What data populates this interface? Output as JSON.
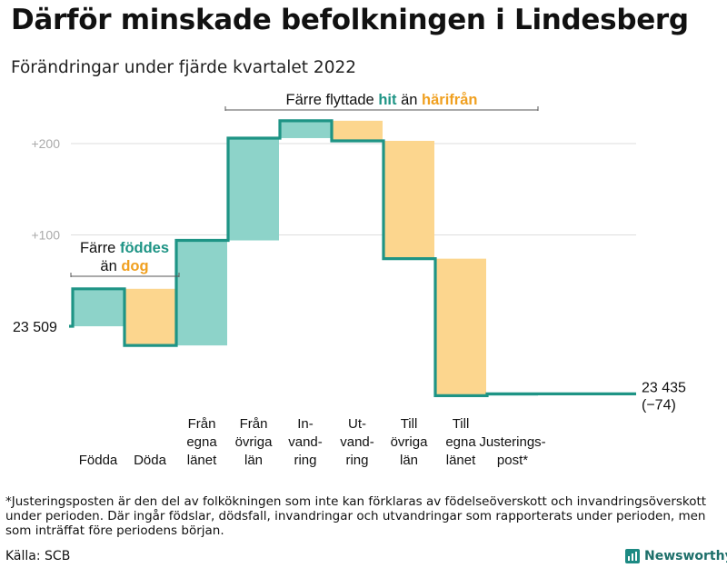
{
  "chart_data": {
    "type": "waterfall",
    "title": "Därför minskade befolkningen i Lindesberg",
    "subtitle": "Förändringar under fjärde kvartalet 2022",
    "start_label": "23 509",
    "start_value": 23509,
    "end_label": "23 435",
    "end_change": "(−74)",
    "end_value": 23435,
    "yticks": [
      {
        "value": 100,
        "label": "+100"
      },
      {
        "value": 200,
        "label": "+200"
      }
    ],
    "steps": [
      {
        "id": "fodda",
        "label": [
          "Födda"
        ],
        "value": 41,
        "kind": "pos"
      },
      {
        "id": "doda",
        "label": [
          "Döda"
        ],
        "value": -62,
        "kind": "neg"
      },
      {
        "id": "fran-egna",
        "label": [
          "Från",
          "egna",
          "länet"
        ],
        "value": 115,
        "kind": "pos"
      },
      {
        "id": "fran-ovriga",
        "label": [
          "Från",
          "övriga",
          "län"
        ],
        "value": 112,
        "kind": "pos"
      },
      {
        "id": "invandring",
        "label": [
          "In-",
          "vand-",
          "ring"
        ],
        "value": 19,
        "kind": "pos"
      },
      {
        "id": "utvandring",
        "label": [
          "Ut-",
          "vand-",
          "ring"
        ],
        "value": -22,
        "kind": "neg"
      },
      {
        "id": "till-ovriga",
        "label": [
          "Till",
          "övriga",
          "län"
        ],
        "value": -129,
        "kind": "neg"
      },
      {
        "id": "till-egna",
        "label": [
          "Till",
          "egna",
          "länet"
        ],
        "value": -150,
        "kind": "neg"
      },
      {
        "id": "justering",
        "label": [
          "Justerings-",
          "post*"
        ],
        "value": 2,
        "kind": "pos"
      }
    ],
    "annotations": {
      "births": {
        "line1": "Färre",
        "births_word": "föddes",
        "line2_prefix": "än",
        "deaths_word": "dog"
      },
      "moves": {
        "prefix": "Färre flyttade",
        "hit_word": "hit",
        "middle": "än",
        "harifran_word": "härifrån"
      }
    },
    "colors": {
      "pos": "#8dd3c9",
      "neg": "#fcd68e",
      "line": "#1e9485",
      "pos_text": "#1e9485",
      "neg_text": "#f0a020",
      "grid": "#dddddd",
      "tick": "#aaaaaa"
    }
  },
  "footnote": "*Justeringsposten är den del av folkökningen som inte kan förklaras av födelseöverskott och invandringsöverskott under perioden. Där ingår födslar, dödsfall, invandringar och utvandringar som rapporterats under perioden, men som inträffat före periodens början.",
  "source": "Källa: SCB",
  "brand": {
    "name": "Newsworthy",
    "icon": "newsworthy-logo-icon"
  }
}
